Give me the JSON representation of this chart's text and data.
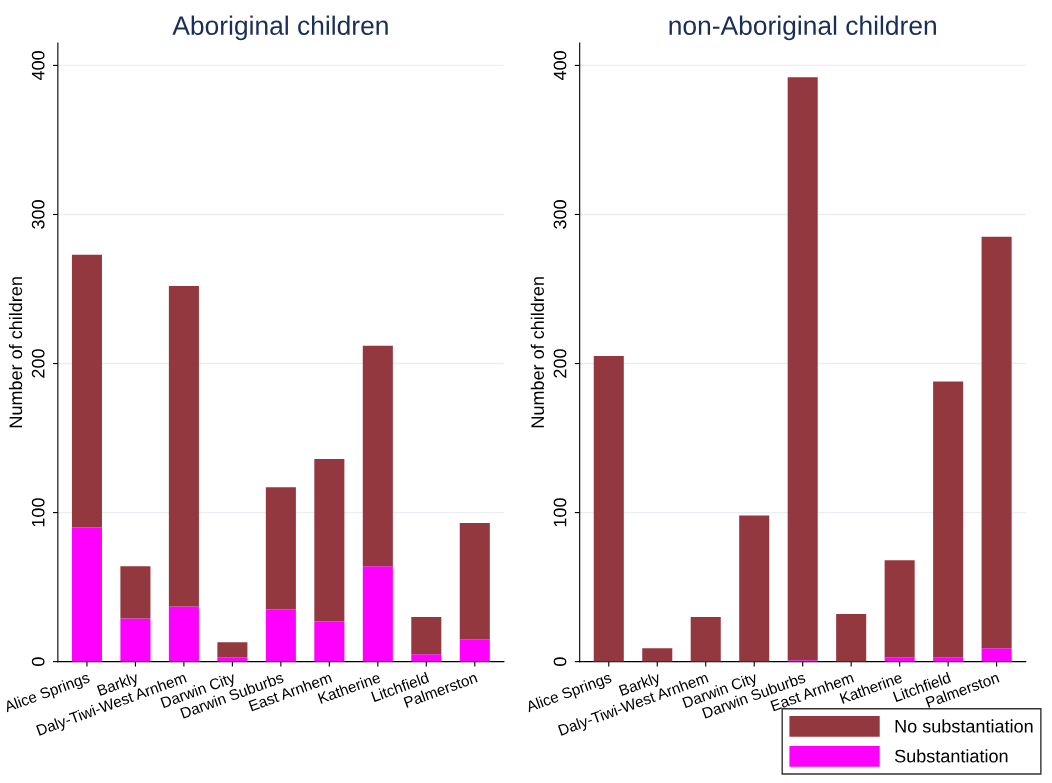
{
  "chart_data": [
    {
      "type": "bar",
      "title": "Aboriginal children",
      "ylabel": "Number of children",
      "stacked": true,
      "grid": "y",
      "legend": "bottom right",
      "categories": [
        "Alice Springs",
        "Barkly",
        "Daly-Tiwi-West Arnhem",
        "Darwin City",
        "Darwin Suburbs",
        "East Arnhem",
        "Katherine",
        "Litchfield",
        "Palmerston"
      ],
      "ylim": [
        0,
        415
      ],
      "yticks": [
        0,
        100,
        200,
        300,
        400
      ],
      "series": [
        {
          "name": "Substantiation",
          "color": "#ff00ff",
          "values": [
            90,
            29,
            37,
            3,
            35,
            27,
            64,
            5,
            15
          ]
        },
        {
          "name": "No substantiation",
          "color": "#943840",
          "values": [
            183,
            35,
            215,
            10,
            82,
            109,
            148,
            25,
            78
          ]
        }
      ]
    },
    {
      "type": "bar",
      "title": "non-Aboriginal children",
      "ylabel": "Number of children",
      "stacked": true,
      "grid": "y",
      "legend": "bottom right",
      "categories": [
        "Alice Springs",
        "Barkly",
        "Daly-Tiwi-West Arnhem",
        "Darwin City",
        "Darwin Suburbs",
        "East Arnhem",
        "Katherine",
        "Litchfield",
        "Palmerston"
      ],
      "ylim": [
        0,
        415
      ],
      "yticks": [
        0,
        100,
        200,
        300,
        400
      ],
      "series": [
        {
          "name": "Substantiation",
          "color": "#ff00ff",
          "values": [
            0,
            0,
            0,
            0,
            1,
            0,
            3,
            3,
            9
          ]
        },
        {
          "name": "No substantiation",
          "color": "#943840",
          "values": [
            205,
            9,
            30,
            98,
            391,
            32,
            65,
            185,
            276
          ]
        }
      ]
    }
  ]
}
